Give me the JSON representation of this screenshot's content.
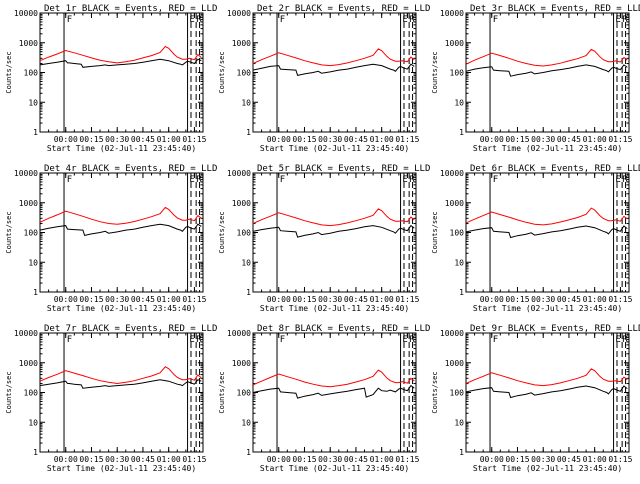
{
  "figure": {
    "xlabel": "Start Time (02-Jul-11 23:45:40)",
    "ylabel": "Counts/sec",
    "y_ticks": [
      1,
      10,
      100,
      1000,
      10000
    ],
    "y_tick_labels": [
      "1",
      "10",
      "100",
      "1000",
      "10000"
    ],
    "ylim": [
      1,
      10000
    ],
    "y_scale": "log",
    "x_ticks_min": [
      15,
      30,
      45,
      60,
      75,
      90
    ],
    "x_tick_labels": [
      "00:00",
      "00:15",
      "00:30",
      "00:45",
      "01:00",
      "01:15"
    ],
    "xlim_min": [
      0,
      95
    ],
    "vlines_solid_min": [
      14,
      86
    ],
    "vlines_dashed_min": [
      88,
      91,
      93
    ],
    "markers": [
      {
        "label": "F",
        "x_min": 15
      },
      {
        "label": "E",
        "x_min": 86.5
      },
      {
        "label": "R",
        "x_min": 90.5
      }
    ],
    "colors": {
      "events": "#000000",
      "lld": "#ff0000",
      "axis": "#000000"
    }
  },
  "chart_data": [
    {
      "type": "line",
      "title": "Det 1r BLACK = Events, RED = LLD",
      "series": [
        {
          "name": "Events",
          "x": [
            0,
            5,
            10,
            15,
            16,
            17,
            20,
            24,
            25,
            30,
            35,
            38,
            40,
            45,
            50,
            55,
            60,
            65,
            70,
            75,
            80,
            82,
            83,
            85,
            86,
            88,
            90,
            92,
            94
          ],
          "y": [
            180,
            200,
            220,
            250,
            210,
            210,
            200,
            190,
            150,
            160,
            170,
            180,
            170,
            180,
            190,
            200,
            220,
            250,
            280,
            250,
            200,
            190,
            180,
            220,
            240,
            220,
            200,
            280,
            250
          ]
        },
        {
          "name": "LLD",
          "x": [
            0,
            5,
            10,
            15,
            20,
            25,
            30,
            35,
            40,
            45,
            50,
            55,
            60,
            65,
            70,
            73,
            75,
            78,
            80,
            83,
            85,
            87,
            90,
            92,
            94
          ],
          "y": [
            250,
            330,
            420,
            550,
            460,
            380,
            310,
            260,
            230,
            210,
            230,
            260,
            310,
            370,
            470,
            750,
            650,
            420,
            330,
            280,
            280,
            300,
            270,
            400,
            320
          ]
        }
      ]
    },
    {
      "type": "line",
      "title": "Det 2r BLACK = Events, RED = LLD",
      "series": [
        {
          "name": "Events",
          "x": [
            0,
            5,
            10,
            15,
            16,
            20,
            25,
            26,
            30,
            35,
            38,
            40,
            45,
            50,
            55,
            60,
            65,
            70,
            75,
            80,
            82,
            83,
            85,
            86,
            88,
            90,
            92,
            94
          ],
          "y": [
            120,
            140,
            160,
            170,
            130,
            125,
            120,
            80,
            90,
            100,
            110,
            95,
            105,
            120,
            130,
            150,
            170,
            190,
            170,
            130,
            120,
            110,
            150,
            160,
            140,
            130,
            190,
            160
          ]
        },
        {
          "name": "LLD",
          "x": [
            0,
            5,
            10,
            15,
            20,
            25,
            30,
            35,
            40,
            45,
            50,
            55,
            60,
            65,
            70,
            73,
            75,
            78,
            80,
            83,
            85,
            87,
            90,
            92,
            94
          ],
          "y": [
            200,
            270,
            350,
            460,
            380,
            310,
            250,
            210,
            180,
            170,
            185,
            210,
            250,
            300,
            380,
            620,
            540,
            350,
            280,
            240,
            240,
            250,
            230,
            330,
            270
          ]
        }
      ]
    },
    {
      "type": "line",
      "title": "Det 3r BLACK = Events, RED = LLD",
      "series": [
        {
          "name": "Events",
          "x": [
            0,
            5,
            10,
            15,
            16,
            20,
            25,
            26,
            30,
            35,
            38,
            40,
            45,
            50,
            55,
            60,
            65,
            70,
            75,
            80,
            82,
            83,
            85,
            86,
            88,
            90,
            92,
            94
          ],
          "y": [
            110,
            130,
            145,
            155,
            120,
            115,
            110,
            75,
            85,
            95,
            105,
            90,
            100,
            115,
            125,
            140,
            160,
            180,
            160,
            125,
            115,
            105,
            140,
            150,
            135,
            125,
            180,
            150
          ]
        },
        {
          "name": "LLD",
          "x": [
            0,
            5,
            10,
            15,
            20,
            25,
            30,
            35,
            40,
            45,
            50,
            55,
            60,
            65,
            70,
            73,
            75,
            78,
            80,
            83,
            85,
            87,
            90,
            92,
            94
          ],
          "y": [
            190,
            260,
            340,
            450,
            370,
            300,
            240,
            200,
            175,
            165,
            180,
            205,
            245,
            290,
            370,
            600,
            520,
            340,
            270,
            230,
            230,
            245,
            225,
            320,
            260
          ]
        }
      ]
    },
    {
      "type": "line",
      "title": "Det 4r BLACK = Events, RED = LLD",
      "series": [
        {
          "name": "Events",
          "x": [
            0,
            5,
            10,
            15,
            16,
            20,
            25,
            26,
            30,
            35,
            38,
            40,
            45,
            50,
            55,
            60,
            65,
            70,
            75,
            80,
            82,
            83,
            85,
            86,
            88,
            90,
            92,
            94
          ],
          "y": [
            120,
            140,
            155,
            170,
            130,
            125,
            120,
            80,
            90,
            100,
            110,
            95,
            105,
            120,
            130,
            150,
            170,
            190,
            170,
            130,
            120,
            110,
            150,
            160,
            140,
            130,
            190,
            160
          ]
        },
        {
          "name": "LLD",
          "x": [
            0,
            5,
            10,
            15,
            20,
            25,
            30,
            35,
            40,
            45,
            50,
            55,
            60,
            65,
            70,
            73,
            75,
            78,
            80,
            83,
            85,
            87,
            90,
            92,
            94
          ],
          "y": [
            220,
            300,
            390,
            520,
            430,
            350,
            280,
            230,
            200,
            190,
            205,
            235,
            280,
            340,
            430,
            700,
            600,
            390,
            310,
            260,
            260,
            280,
            250,
            370,
            300
          ]
        }
      ]
    },
    {
      "type": "line",
      "title": "Det 5r BLACK = Events, RED = LLD",
      "series": [
        {
          "name": "Events",
          "x": [
            0,
            5,
            10,
            15,
            16,
            20,
            25,
            26,
            30,
            35,
            38,
            40,
            45,
            50,
            55,
            60,
            65,
            70,
            75,
            80,
            82,
            83,
            85,
            86,
            88,
            90,
            92,
            94
          ],
          "y": [
            110,
            125,
            140,
            150,
            115,
            110,
            105,
            70,
            80,
            90,
            100,
            85,
            95,
            110,
            120,
            135,
            155,
            170,
            150,
            115,
            105,
            95,
            130,
            140,
            125,
            115,
            170,
            140
          ]
        },
        {
          "name": "LLD",
          "x": [
            0,
            5,
            10,
            15,
            20,
            25,
            30,
            35,
            40,
            45,
            50,
            55,
            60,
            65,
            70,
            73,
            75,
            78,
            80,
            83,
            85,
            87,
            90,
            92,
            94
          ],
          "y": [
            200,
            270,
            350,
            460,
            380,
            310,
            250,
            210,
            180,
            170,
            185,
            210,
            250,
            300,
            380,
            620,
            540,
            350,
            280,
            240,
            240,
            250,
            230,
            330,
            270
          ]
        }
      ]
    },
    {
      "type": "line",
      "title": "Det 6r BLACK = Events, RED = LLD",
      "series": [
        {
          "name": "Events",
          "x": [
            0,
            5,
            10,
            15,
            16,
            20,
            25,
            26,
            30,
            35,
            38,
            40,
            45,
            50,
            55,
            60,
            65,
            70,
            75,
            80,
            82,
            83,
            85,
            86,
            88,
            90,
            92,
            94
          ],
          "y": [
            105,
            120,
            135,
            145,
            110,
            105,
            100,
            68,
            78,
            88,
            98,
            82,
            92,
            105,
            115,
            130,
            150,
            165,
            145,
            110,
            100,
            90,
            125,
            135,
            120,
            110,
            165,
            135
          ]
        },
        {
          "name": "LLD",
          "x": [
            0,
            5,
            10,
            15,
            20,
            25,
            30,
            35,
            40,
            45,
            50,
            55,
            60,
            65,
            70,
            73,
            75,
            78,
            80,
            83,
            85,
            87,
            90,
            92,
            94
          ],
          "y": [
            210,
            280,
            370,
            490,
            400,
            330,
            265,
            220,
            190,
            180,
            195,
            225,
            265,
            320,
            410,
            660,
            570,
            370,
            295,
            250,
            250,
            265,
            240,
            350,
            285
          ]
        }
      ]
    },
    {
      "type": "line",
      "title": "Det 7r BLACK = Events, RED = LLD",
      "series": [
        {
          "name": "Events",
          "x": [
            0,
            5,
            10,
            15,
            16,
            17,
            20,
            24,
            25,
            30,
            35,
            38,
            40,
            45,
            50,
            55,
            60,
            65,
            70,
            75,
            80,
            82,
            83,
            85,
            86,
            88,
            90,
            92,
            94
          ],
          "y": [
            170,
            190,
            210,
            240,
            200,
            200,
            190,
            180,
            140,
            150,
            160,
            170,
            160,
            170,
            180,
            190,
            210,
            240,
            270,
            240,
            190,
            180,
            170,
            210,
            230,
            210,
            190,
            270,
            240
          ]
        },
        {
          "name": "LLD",
          "x": [
            0,
            5,
            10,
            15,
            20,
            25,
            30,
            35,
            40,
            45,
            50,
            55,
            60,
            65,
            70,
            73,
            75,
            78,
            80,
            83,
            85,
            87,
            90,
            92,
            94
          ],
          "y": [
            240,
            320,
            410,
            540,
            450,
            370,
            300,
            250,
            220,
            200,
            220,
            250,
            300,
            360,
            460,
            730,
            630,
            410,
            320,
            270,
            270,
            290,
            260,
            390,
            310
          ]
        }
      ]
    },
    {
      "type": "line",
      "title": "Det 8r BLACK = Events, RED = LLD",
      "series": [
        {
          "name": "Events",
          "x": [
            0,
            5,
            10,
            15,
            16,
            20,
            25,
            26,
            30,
            35,
            38,
            40,
            45,
            50,
            55,
            60,
            65,
            66,
            70,
            73,
            75,
            78,
            80,
            83,
            85,
            86,
            88,
            90,
            92,
            94
          ],
          "y": [
            100,
            115,
            130,
            140,
            105,
            100,
            95,
            65,
            75,
            85,
            95,
            80,
            90,
            100,
            110,
            125,
            140,
            70,
            85,
            140,
            115,
            110,
            120,
            105,
            130,
            140,
            125,
            115,
            170,
            140
          ]
        },
        {
          "name": "LLD",
          "x": [
            0,
            5,
            10,
            15,
            20,
            25,
            30,
            35,
            40,
            45,
            50,
            55,
            60,
            65,
            70,
            73,
            75,
            78,
            80,
            83,
            85,
            87,
            90,
            92,
            94
          ],
          "y": [
            180,
            240,
            320,
            420,
            340,
            280,
            225,
            190,
            165,
            155,
            170,
            190,
            225,
            270,
            350,
            560,
            480,
            310,
            250,
            215,
            215,
            230,
            205,
            300,
            245
          ]
        }
      ]
    },
    {
      "type": "line",
      "title": "Det 9r BLACK = Events, RED = LLD",
      "series": [
        {
          "name": "Events",
          "x": [
            0,
            5,
            10,
            15,
            16,
            20,
            25,
            26,
            30,
            35,
            38,
            40,
            45,
            50,
            55,
            60,
            65,
            70,
            75,
            80,
            82,
            83,
            85,
            86,
            88,
            90,
            92,
            94
          ],
          "y": [
            105,
            120,
            135,
            145,
            110,
            105,
            100,
            68,
            78,
            88,
            98,
            82,
            92,
            105,
            115,
            130,
            150,
            165,
            145,
            110,
            100,
            90,
            125,
            135,
            120,
            110,
            165,
            135
          ]
        },
        {
          "name": "LLD",
          "x": [
            0,
            5,
            10,
            15,
            20,
            25,
            30,
            35,
            40,
            45,
            50,
            55,
            60,
            65,
            70,
            73,
            75,
            78,
            80,
            83,
            85,
            87,
            90,
            92,
            94
          ],
          "y": [
            200,
            270,
            350,
            460,
            380,
            310,
            250,
            210,
            180,
            170,
            185,
            210,
            250,
            300,
            380,
            620,
            540,
            350,
            280,
            240,
            240,
            250,
            230,
            330,
            270
          ]
        }
      ]
    }
  ]
}
